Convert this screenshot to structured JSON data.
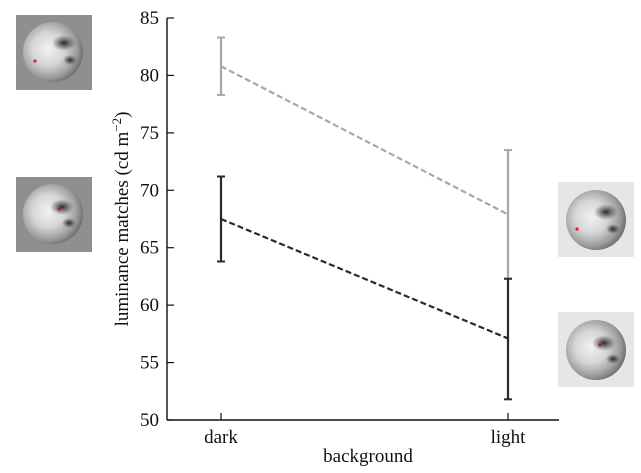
{
  "chart_data": {
    "type": "line",
    "xlabel": "background",
    "ylabel": "luminance matches (cd m",
    "ylabel_sup": "−2",
    "ylabel_close": ")",
    "categories": [
      "dark",
      "light"
    ],
    "ylim": [
      50,
      85
    ],
    "yticks": [
      50,
      55,
      60,
      65,
      70,
      75,
      80,
      85
    ],
    "grid": false,
    "series": [
      {
        "values": [
          80.8,
          67.9
        ],
        "err_low": [
          78.3,
          62.3
        ],
        "err_high": [
          83.3,
          73.5
        ],
        "color": "#a8a8a8",
        "style": "dashed"
      },
      {
        "values": [
          67.5,
          57.1
        ],
        "err_low": [
          63.8,
          51.8
        ],
        "err_high": [
          71.2,
          62.3
        ],
        "color": "#2a2a2a",
        "style": "dashed"
      }
    ],
    "stimulus_images": [
      "moon-patch-dot-dark-bg",
      "moon-patch-dark-bg",
      "moon-patch-dot-light-bg",
      "moon-patch-light-bg"
    ]
  }
}
